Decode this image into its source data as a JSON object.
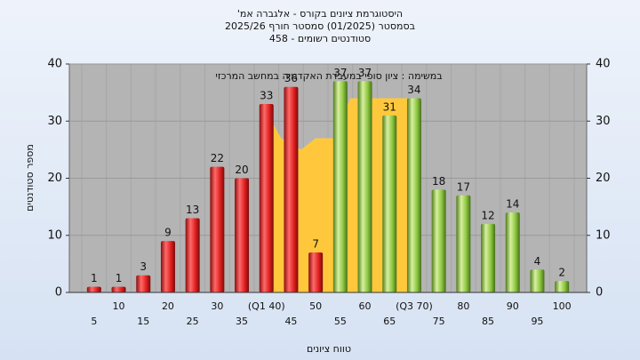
{
  "chart_data": {
    "type": "bar",
    "title": "'היסטוגרמת ציונים בקורס - אלגברה אמ",
    "subtitle": "בסמסטר  (01/2025)  סמסטר חורף 2025/26",
    "subtitle2": "סטודנטים רשומים - 458",
    "annotation": "במשימה : ציון סופי במעבדת האקדמיה במחשב המרכזי",
    "x_label": "טווח ציונים",
    "y_label": "מספר סטודנטים",
    "categories": [
      "5",
      "10",
      "15",
      "20",
      "25",
      "30",
      "35",
      "(Q1 40)",
      "45",
      "50",
      "55",
      "60",
      "65",
      "(Q3 70)",
      "75",
      "80",
      "85",
      "90",
      "95",
      "100"
    ],
    "series": [
      {
        "color": "#e02020",
        "values": [
          1,
          1,
          3,
          9,
          13,
          22,
          20,
          33,
          36,
          7,
          null,
          null,
          null,
          null,
          null,
          null,
          null,
          null,
          null,
          null
        ]
      },
      {
        "color": "#8cc63f",
        "values": [
          null,
          null,
          null,
          null,
          null,
          null,
          null,
          null,
          null,
          null,
          37,
          37,
          31,
          34,
          18,
          17,
          12,
          14,
          4,
          2
        ]
      }
    ],
    "band": {
      "color": "#ffc83c",
      "x": [
        41,
        43,
        47,
        50,
        54,
        57,
        68,
        70
      ],
      "values": [
        30,
        27,
        25,
        27,
        27,
        34,
        34,
        34
      ]
    },
    "ylim": [
      0,
      40
    ],
    "yticks": [
      0,
      10,
      20,
      30,
      40
    ],
    "y2lim": [
      0,
      40
    ],
    "y2ticks": [
      0,
      10,
      20,
      30,
      40
    ],
    "grid": true
  }
}
